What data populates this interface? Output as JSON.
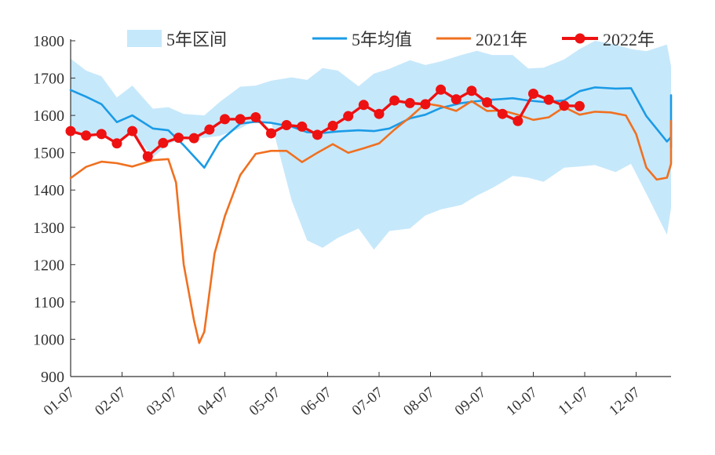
{
  "chart_data": {
    "type": "line",
    "title": "",
    "xlabel": "",
    "ylabel": "",
    "ylim": [
      900,
      1800
    ],
    "yticks": [
      900,
      1000,
      1100,
      1200,
      1300,
      1400,
      1500,
      1600,
      1700,
      1800
    ],
    "x_tick_labels": [
      "01-07",
      "02-07",
      "03-07",
      "04-07",
      "05-07",
      "06-07",
      "07-07",
      "08-07",
      "09-07",
      "10-07",
      "11-07",
      "12-07"
    ],
    "grid": false,
    "legend_position": "top",
    "legend": {
      "band": "5年区间",
      "avg": "5年均值",
      "y2021": "2021年",
      "y2022": "2022年"
    },
    "colors": {
      "band": "#c6e8fb",
      "avg": "#1a9be6",
      "y2021": "#f07020",
      "y2022": "#ee1111"
    },
    "range_upper": [
      [
        0,
        1752
      ],
      [
        0.3,
        1720
      ],
      [
        0.6,
        1705
      ],
      [
        0.9,
        1648
      ],
      [
        1.2,
        1680
      ],
      [
        1.6,
        1618
      ],
      [
        1.9,
        1622
      ],
      [
        2.2,
        1604
      ],
      [
        2.6,
        1600
      ],
      [
        2.9,
        1636
      ],
      [
        3.3,
        1677
      ],
      [
        3.6,
        1680
      ],
      [
        3.9,
        1693
      ],
      [
        4.3,
        1702
      ],
      [
        4.6,
        1695
      ],
      [
        4.9,
        1727
      ],
      [
        5.2,
        1720
      ],
      [
        5.6,
        1678
      ],
      [
        5.9,
        1712
      ],
      [
        6.2,
        1725
      ],
      [
        6.6,
        1748
      ],
      [
        6.9,
        1735
      ],
      [
        7.2,
        1745
      ],
      [
        7.6,
        1762
      ],
      [
        7.9,
        1773
      ],
      [
        8.2,
        1762
      ],
      [
        8.6,
        1762
      ],
      [
        8.9,
        1726
      ],
      [
        9.2,
        1728
      ],
      [
        9.6,
        1750
      ],
      [
        9.9,
        1778
      ],
      [
        10.2,
        1800
      ],
      [
        10.6,
        1790
      ],
      [
        10.9,
        1778
      ],
      [
        11.2,
        1772
      ],
      [
        11.6,
        1790
      ],
      [
        11.9,
        1732
      ],
      [
        12.2,
        1650
      ],
      [
        12.6,
        1662
      ],
      [
        12.9,
        1625
      ],
      [
        13.2,
        1632
      ],
      [
        13.6,
        1625
      ],
      [
        13.9,
        1643
      ],
      [
        14.2,
        1642
      ],
      [
        14.6,
        1665
      ],
      [
        14.9,
        1685
      ],
      [
        15.2,
        1756
      ],
      [
        15.6,
        1752
      ],
      [
        15.9,
        1748
      ],
      [
        16.2,
        1745
      ],
      [
        16.6,
        1742
      ],
      [
        16.9,
        1765
      ]
    ],
    "range_lower": [
      [
        0,
        1552
      ],
      [
        0.3,
        1545
      ],
      [
        0.6,
        1550
      ],
      [
        0.9,
        1525
      ],
      [
        1.2,
        1558
      ],
      [
        1.6,
        1488
      ],
      [
        1.9,
        1523
      ],
      [
        2.2,
        1540
      ],
      [
        2.6,
        1540
      ],
      [
        2.9,
        1545
      ],
      [
        3.3,
        1565
      ],
      [
        3.6,
        1587
      ],
      [
        3.9,
        1583
      ],
      [
        4.3,
        1372
      ],
      [
        4.6,
        1265
      ],
      [
        4.9,
        1245
      ],
      [
        5.2,
        1272
      ],
      [
        5.6,
        1297
      ],
      [
        5.9,
        1240
      ],
      [
        6.2,
        1290
      ],
      [
        6.6,
        1297
      ],
      [
        6.9,
        1332
      ],
      [
        7.2,
        1348
      ],
      [
        7.6,
        1360
      ],
      [
        7.9,
        1385
      ],
      [
        8.2,
        1405
      ],
      [
        8.6,
        1438
      ],
      [
        8.9,
        1433
      ],
      [
        9.2,
        1422
      ],
      [
        9.6,
        1460
      ],
      [
        9.9,
        1463
      ],
      [
        10.2,
        1467
      ],
      [
        10.6,
        1448
      ],
      [
        10.9,
        1470
      ],
      [
        11.2,
        1390
      ],
      [
        11.6,
        1280
      ],
      [
        11.9,
        1352
      ],
      [
        12.2,
        1338
      ],
      [
        12.6,
        1370
      ],
      [
        12.9,
        1385
      ],
      [
        13.2,
        1360
      ],
      [
        13.6,
        1302
      ],
      [
        13.9,
        1336
      ],
      [
        14.2,
        1352
      ],
      [
        14.6,
        1346
      ],
      [
        14.9,
        1388
      ],
      [
        15.2,
        1425
      ],
      [
        15.6,
        1402
      ],
      [
        15.9,
        1440
      ],
      [
        16.2,
        1420
      ],
      [
        16.6,
        1405
      ],
      [
        16.9,
        1432
      ]
    ],
    "series": [
      {
        "name": "5年均值",
        "values": [
          [
            0,
            1668
          ],
          [
            0.3,
            1650
          ],
          [
            0.6,
            1630
          ],
          [
            0.9,
            1582
          ],
          [
            1.2,
            1600
          ],
          [
            1.6,
            1565
          ],
          [
            1.9,
            1560
          ],
          [
            2.2,
            1520
          ],
          [
            2.6,
            1460
          ],
          [
            2.9,
            1530
          ],
          [
            3.3,
            1578
          ],
          [
            3.6,
            1583
          ],
          [
            3.9,
            1580
          ],
          [
            4.3,
            1570
          ],
          [
            4.6,
            1555
          ],
          [
            4.9,
            1553
          ],
          [
            5.2,
            1557
          ],
          [
            5.6,
            1560
          ],
          [
            5.9,
            1558
          ],
          [
            6.2,
            1565
          ],
          [
            6.6,
            1592
          ],
          [
            6.9,
            1602
          ],
          [
            7.2,
            1620
          ],
          [
            7.6,
            1633
          ],
          [
            7.9,
            1638
          ],
          [
            8.2,
            1642
          ],
          [
            8.6,
            1646
          ],
          [
            8.9,
            1640
          ],
          [
            9.2,
            1636
          ],
          [
            9.6,
            1640
          ],
          [
            9.9,
            1665
          ],
          [
            10.2,
            1675
          ],
          [
            10.6,
            1672
          ],
          [
            10.9,
            1673
          ],
          [
            11.2,
            1598
          ],
          [
            11.6,
            1530
          ],
          [
            11.9,
            1542
          ],
          [
            12.2,
            1560
          ],
          [
            12.6,
            1557
          ],
          [
            12.9,
            1545
          ],
          [
            13.2,
            1515
          ],
          [
            13.6,
            1525
          ],
          [
            13.9,
            1538
          ],
          [
            14.2,
            1540
          ],
          [
            14.6,
            1558
          ],
          [
            14.9,
            1590
          ],
          [
            15.2,
            1618
          ],
          [
            15.6,
            1624
          ],
          [
            15.9,
            1623
          ],
          [
            16.2,
            1620
          ],
          [
            16.6,
            1632
          ],
          [
            16.9,
            1654
          ]
        ]
      },
      {
        "name": "2021年",
        "values": [
          [
            0,
            1432
          ],
          [
            0.3,
            1462
          ],
          [
            0.6,
            1476
          ],
          [
            0.9,
            1472
          ],
          [
            1.2,
            1463
          ],
          [
            1.6,
            1480
          ],
          [
            1.9,
            1483
          ],
          [
            2.05,
            1420
          ],
          [
            2.2,
            1200
          ],
          [
            2.4,
            1050
          ],
          [
            2.5,
            990
          ],
          [
            2.6,
            1020
          ],
          [
            2.8,
            1230
          ],
          [
            3.0,
            1330
          ],
          [
            3.3,
            1440
          ],
          [
            3.6,
            1497
          ],
          [
            3.9,
            1505
          ],
          [
            4.2,
            1505
          ],
          [
            4.5,
            1475
          ],
          [
            4.8,
            1500
          ],
          [
            5.1,
            1523
          ],
          [
            5.4,
            1500
          ],
          [
            5.7,
            1512
          ],
          [
            6.0,
            1525
          ],
          [
            6.3,
            1562
          ],
          [
            6.6,
            1595
          ],
          [
            6.9,
            1632
          ],
          [
            7.2,
            1625
          ],
          [
            7.5,
            1612
          ],
          [
            7.8,
            1638
          ],
          [
            8.1,
            1612
          ],
          [
            8.4,
            1613
          ],
          [
            8.7,
            1602
          ],
          [
            9.0,
            1588
          ],
          [
            9.3,
            1595
          ],
          [
            9.6,
            1622
          ],
          [
            9.9,
            1602
          ],
          [
            10.2,
            1610
          ],
          [
            10.5,
            1608
          ],
          [
            10.8,
            1600
          ],
          [
            11.0,
            1550
          ],
          [
            11.2,
            1460
          ],
          [
            11.4,
            1428
          ],
          [
            11.6,
            1433
          ],
          [
            11.8,
            1470
          ],
          [
            12.0,
            1535
          ],
          [
            12.2,
            1540
          ],
          [
            12.5,
            1545
          ],
          [
            12.8,
            1577
          ],
          [
            13.0,
            1560
          ],
          [
            13.2,
            1505
          ],
          [
            13.6,
            1500
          ],
          [
            13.9,
            1505
          ],
          [
            14.2,
            1502
          ],
          [
            14.4,
            1530
          ],
          [
            14.7,
            1540
          ],
          [
            15.0,
            1565
          ],
          [
            15.3,
            1562
          ],
          [
            15.6,
            1580
          ],
          [
            15.9,
            1570
          ],
          [
            16.2,
            1585
          ],
          [
            16.6,
            1570
          ]
        ]
      },
      {
        "name": "2022年",
        "values": [
          [
            0,
            1558
          ],
          [
            0.3,
            1546
          ],
          [
            0.6,
            1550
          ],
          [
            0.9,
            1525
          ],
          [
            1.2,
            1558
          ],
          [
            1.5,
            1490
          ],
          [
            1.8,
            1526
          ],
          [
            2.1,
            1540
          ],
          [
            2.4,
            1539
          ],
          [
            2.7,
            1562
          ],
          [
            3.0,
            1590
          ],
          [
            3.3,
            1590
          ],
          [
            3.6,
            1595
          ],
          [
            3.9,
            1552
          ],
          [
            4.2,
            1574
          ],
          [
            4.5,
            1570
          ],
          [
            4.8,
            1548
          ],
          [
            5.1,
            1572
          ],
          [
            5.4,
            1598
          ],
          [
            5.7,
            1628
          ],
          [
            6.0,
            1604
          ],
          [
            6.3,
            1640
          ],
          [
            6.6,
            1633
          ],
          [
            6.9,
            1630
          ],
          [
            7.2,
            1669
          ],
          [
            7.5,
            1643
          ],
          [
            7.8,
            1666
          ],
          [
            8.1,
            1635
          ],
          [
            8.4,
            1604
          ],
          [
            8.7,
            1585
          ],
          [
            9.0,
            1658
          ],
          [
            9.3,
            1642
          ],
          [
            9.6,
            1626
          ],
          [
            9.9,
            1625
          ]
        ]
      }
    ]
  }
}
